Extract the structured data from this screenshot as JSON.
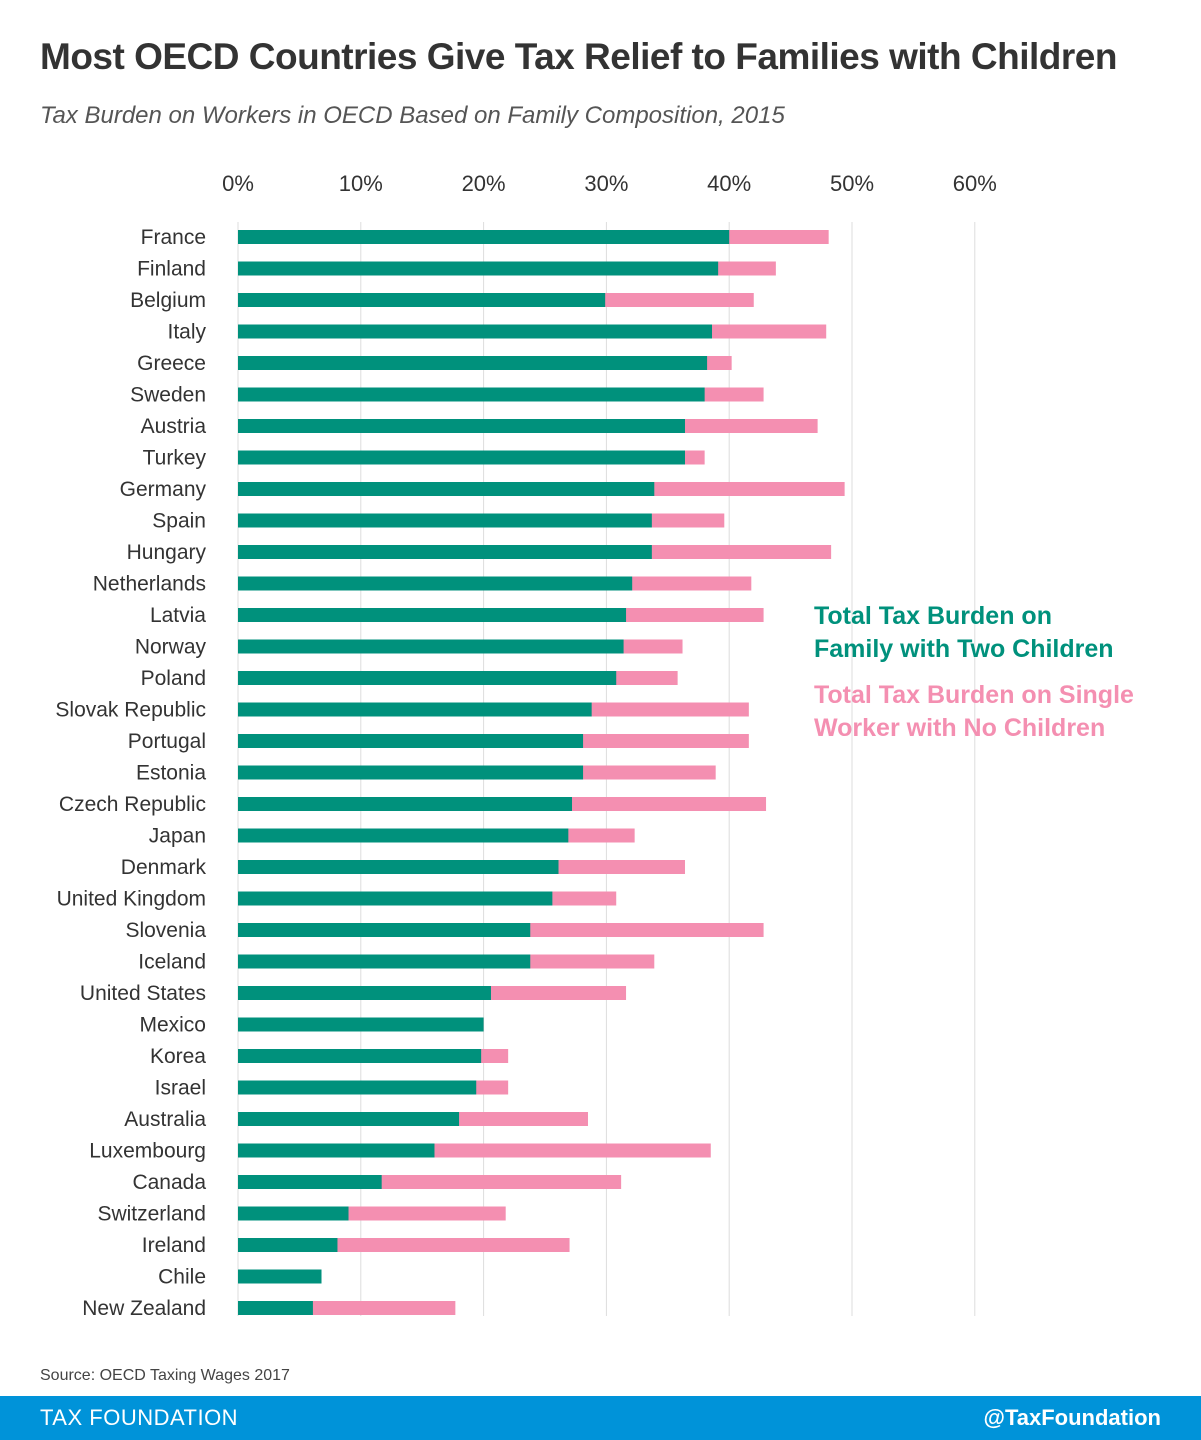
{
  "title": "Most OECD Countries Give Tax Relief to Families with Children",
  "subtitle": "Tax Burden on Workers in OECD Based on Family Composition, 2015",
  "source": "Source: OECD Taxing Wages 2017",
  "footer": {
    "left": "TAX FOUNDATION",
    "right": "@TaxFoundation"
  },
  "legend": {
    "family_line1": "Total Tax Burden on",
    "family_line2": "Family with Two Children",
    "single_line1": "Total Tax Burden on Single",
    "single_line2": "Worker with No Children"
  },
  "colors": {
    "family": "#00917c",
    "single": "#f48fb1",
    "grid": "#dddddd",
    "footer": "#0093d9"
  },
  "chart_data": {
    "type": "bar",
    "orientation": "horizontal",
    "stacking": "overlay",
    "xlim": [
      0,
      60
    ],
    "xticks": [
      0,
      10,
      20,
      30,
      40,
      50,
      60
    ],
    "xtick_labels": [
      "0%",
      "10%",
      "20%",
      "30%",
      "40%",
      "50%",
      "60%"
    ],
    "grid": true,
    "legend_position": "right",
    "categories": [
      "France",
      "Finland",
      "Belgium",
      "Italy",
      "Greece",
      "Sweden",
      "Austria",
      "Turkey",
      "Germany",
      "Spain",
      "Hungary",
      "Netherlands",
      "Latvia",
      "Norway",
      "Poland",
      "Slovak Republic",
      "Portugal",
      "Estonia",
      "Czech Republic",
      "Japan",
      "Denmark",
      "United Kingdom",
      "Slovenia",
      "Iceland",
      "United States",
      "Mexico",
      "Korea",
      "Israel",
      "Australia",
      "Luxembourg",
      "Canada",
      "Switzerland",
      "Ireland",
      "Chile",
      "New Zealand"
    ],
    "series": [
      {
        "name": "Total Tax Burden on Family with Two Children",
        "color": "#00917c",
        "values": [
          40.0,
          39.1,
          29.9,
          38.6,
          38.2,
          38.0,
          36.4,
          36.4,
          33.9,
          33.7,
          33.7,
          32.1,
          31.6,
          31.4,
          30.8,
          28.8,
          28.1,
          28.1,
          27.2,
          26.9,
          26.1,
          25.6,
          23.8,
          23.8,
          20.6,
          20.0,
          19.8,
          19.4,
          18.0,
          16.0,
          11.7,
          9.0,
          8.1,
          6.8,
          6.1
        ]
      },
      {
        "name": "Total Tax Burden on Single Worker with No Children",
        "color": "#f48fb1",
        "values": [
          48.1,
          43.8,
          42.0,
          47.9,
          40.2,
          42.8,
          47.2,
          38.0,
          49.4,
          39.6,
          48.3,
          41.8,
          42.8,
          36.2,
          35.8,
          41.6,
          41.6,
          38.9,
          43.0,
          32.3,
          36.4,
          30.8,
          42.8,
          33.9,
          31.6,
          20.0,
          22.0,
          22.0,
          28.5,
          38.5,
          31.2,
          21.8,
          27.0,
          6.8,
          17.7
        ]
      }
    ]
  }
}
